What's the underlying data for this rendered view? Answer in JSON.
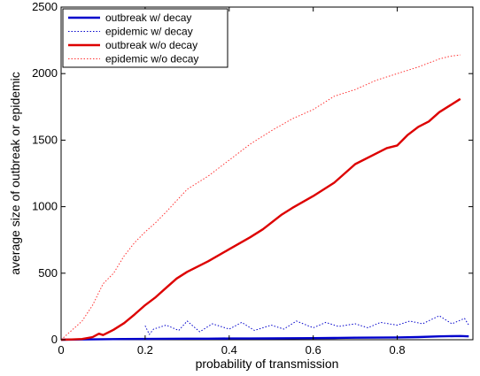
{
  "chart_data": {
    "type": "line",
    "xlabel": "probability of transmission",
    "ylabel": "average size of outbreak or epidemic",
    "xlim": [
      0,
      0.98
    ],
    "ylim": [
      0,
      2500
    ],
    "xticks": [
      0,
      0.2,
      0.4,
      0.6,
      0.8
    ],
    "xtick_labels": [
      "0",
      "0.2",
      "0.4",
      "0.6",
      "0.8"
    ],
    "yticks": [
      0,
      500,
      1000,
      1500,
      2000,
      2500
    ],
    "ytick_labels": [
      "0",
      "500",
      "1000",
      "1500",
      "2000",
      "2500"
    ],
    "grid": false,
    "legend_position": "top-left",
    "series": [
      {
        "name": "outbreak w/ decay",
        "color": "#0000cc",
        "style": "solid",
        "x": [
          0,
          0.05,
          0.1,
          0.15,
          0.2,
          0.25,
          0.3,
          0.35,
          0.4,
          0.45,
          0.5,
          0.55,
          0.6,
          0.65,
          0.7,
          0.75,
          0.8,
          0.85,
          0.9,
          0.95,
          0.97
        ],
        "y": [
          0,
          2,
          4,
          5,
          6,
          7,
          8,
          8,
          9,
          9,
          10,
          11,
          12,
          13,
          15,
          16,
          17,
          20,
          25,
          28,
          25
        ]
      },
      {
        "name": "epidemic w/ decay",
        "color": "#0000cc",
        "style": "dotted",
        "x": [
          0.2,
          0.21,
          0.22,
          0.25,
          0.28,
          0.3,
          0.33,
          0.36,
          0.4,
          0.43,
          0.46,
          0.5,
          0.53,
          0.56,
          0.6,
          0.63,
          0.66,
          0.7,
          0.73,
          0.76,
          0.8,
          0.83,
          0.86,
          0.9,
          0.93,
          0.96,
          0.97
        ],
        "y": [
          105,
          40,
          80,
          110,
          70,
          140,
          60,
          120,
          80,
          130,
          70,
          110,
          80,
          140,
          90,
          130,
          100,
          120,
          90,
          130,
          110,
          140,
          120,
          180,
          120,
          160,
          110
        ]
      },
      {
        "name": "outbreak w/o decay",
        "color": "#dd0000",
        "style": "solid",
        "x": [
          0,
          0.025,
          0.05,
          0.075,
          0.09,
          0.1,
          0.125,
          0.15,
          0.175,
          0.2,
          0.225,
          0.25,
          0.275,
          0.3,
          0.35,
          0.4,
          0.45,
          0.48,
          0.525,
          0.55,
          0.6,
          0.65,
          0.7,
          0.75,
          0.775,
          0.8,
          0.825,
          0.85,
          0.875,
          0.9,
          0.925,
          0.95
        ],
        "y": [
          0,
          2,
          5,
          20,
          45,
          35,
          75,
          125,
          190,
          260,
          320,
          390,
          460,
          510,
          590,
          680,
          770,
          830,
          940,
          990,
          1080,
          1180,
          1320,
          1400,
          1440,
          1460,
          1540,
          1600,
          1640,
          1710,
          1760,
          1810
        ]
      },
      {
        "name": "epidemic w/o decay",
        "color": "#ff3333",
        "style": "dotted",
        "x": [
          0,
          0.025,
          0.05,
          0.075,
          0.1,
          0.125,
          0.15,
          0.175,
          0.2,
          0.225,
          0.25,
          0.3,
          0.35,
          0.4,
          0.45,
          0.5,
          0.55,
          0.6,
          0.65,
          0.7,
          0.75,
          0.8,
          0.85,
          0.9,
          0.925,
          0.95
        ],
        "y": [
          0,
          70,
          140,
          260,
          420,
          500,
          630,
          730,
          810,
          880,
          960,
          1130,
          1230,
          1350,
          1470,
          1570,
          1660,
          1730,
          1830,
          1880,
          1950,
          2000,
          2050,
          2110,
          2130,
          2140
        ]
      }
    ]
  }
}
